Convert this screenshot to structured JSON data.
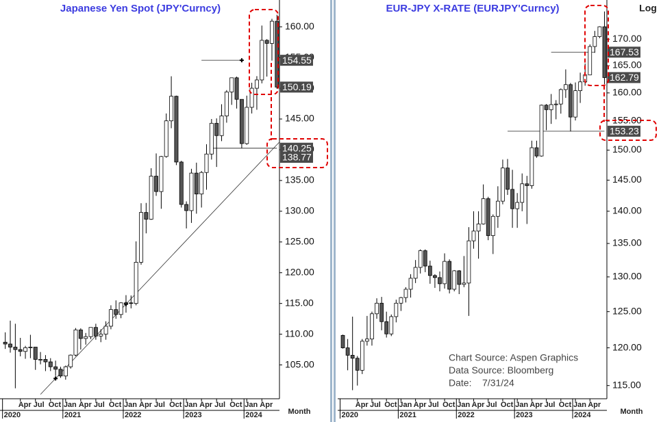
{
  "chart_data": [
    {
      "type": "candlestick",
      "title": "Japanese  Yen  Spot  (JPY'Curncy)",
      "x_axis_label": "Month",
      "log_scale": false,
      "categories": [
        "2020-01",
        "2020-02",
        "2020-03",
        "2020-04",
        "2020-05",
        "2020-06",
        "2020-07",
        "2020-08",
        "2020-09",
        "2020-10",
        "2020-11",
        "2020-12",
        "2021-01",
        "2021-02",
        "2021-03",
        "2021-04",
        "2021-05",
        "2021-06",
        "2021-07",
        "2021-08",
        "2021-09",
        "2021-10",
        "2021-11",
        "2021-12",
        "2022-01",
        "2022-02",
        "2022-03",
        "2022-04",
        "2022-05",
        "2022-06",
        "2022-07",
        "2022-08",
        "2022-09",
        "2022-10",
        "2022-11",
        "2022-12",
        "2023-01",
        "2023-02",
        "2023-03",
        "2023-04",
        "2023-05",
        "2023-06",
        "2023-07",
        "2023-08",
        "2023-09",
        "2023-10",
        "2023-11",
        "2023-12",
        "2024-01",
        "2024-02",
        "2024-03",
        "2024-04",
        "2024-05",
        "2024-06",
        "2024-07"
      ],
      "open": [
        108.7,
        108.4,
        107.9,
        107.5,
        107.2,
        107.8,
        107.9,
        105.9,
        105.9,
        105.5,
        104.7,
        104.3,
        103.2,
        104.7,
        106.6,
        110.7,
        109.3,
        109.6,
        111.1,
        109.7,
        110.0,
        111.3,
        114.0,
        113.2,
        115.1,
        115.1,
        115.0,
        121.7,
        129.8,
        128.7,
        135.7,
        133.2,
        138.9,
        144.7,
        148.7,
        138.0,
        131.1,
        130.1,
        136.2,
        132.8,
        136.3,
        139.3,
        144.3,
        142.3,
        145.5,
        149.4,
        151.7,
        148.2,
        141.0,
        146.9,
        150.0,
        151.35,
        157.8,
        157.3,
        160.9
      ],
      "high": [
        110.3,
        112.2,
        111.7,
        109.4,
        108.1,
        109.9,
        107.8,
        107.1,
        106.6,
        106.1,
        105.7,
        104.7,
        104.9,
        106.7,
        111.0,
        110.96,
        110.2,
        111.1,
        111.7,
        110.8,
        112.1,
        114.7,
        115.5,
        115.2,
        116.35,
        116.3,
        125.1,
        131.3,
        131.35,
        137.0,
        139.4,
        139.0,
        145.9,
        151.95,
        148.8,
        138.2,
        131.6,
        136.9,
        137.9,
        136.55,
        140.9,
        145.0,
        145.1,
        147.4,
        149.7,
        151.7,
        151.9,
        148.2,
        148.8,
        150.9,
        151.97,
        160.2,
        157.99,
        161.3,
        161.95
      ],
      "low": [
        107.6,
        107.0,
        101.2,
        106.4,
        106.0,
        106.1,
        104.2,
        105.1,
        104.0,
        104.0,
        103.2,
        102.9,
        102.6,
        104.4,
        106.4,
        107.5,
        108.3,
        109.2,
        109.1,
        108.7,
        109.1,
        110.8,
        112.5,
        112.6,
        113.5,
        114.2,
        114.7,
        121.3,
        126.4,
        128.6,
        132.5,
        130.4,
        138.7,
        143.5,
        137.5,
        130.6,
        127.2,
        128.1,
        129.6,
        130.6,
        133.5,
        138.4,
        137.2,
        141.4,
        144.4,
        147.3,
        146.7,
        140.25,
        140.8,
        145.9,
        146.5,
        150.8,
        151.9,
        154.5,
        149.9
      ],
      "close": [
        108.4,
        107.9,
        107.5,
        107.2,
        107.8,
        107.9,
        105.9,
        105.9,
        105.5,
        104.7,
        104.3,
        103.2,
        104.7,
        106.6,
        110.7,
        109.3,
        109.6,
        111.1,
        109.7,
        110.0,
        111.3,
        114.0,
        113.2,
        115.1,
        115.1,
        115.0,
        121.7,
        129.8,
        128.7,
        135.7,
        133.2,
        138.9,
        144.7,
        148.7,
        138.0,
        131.1,
        130.1,
        136.2,
        132.8,
        136.3,
        139.3,
        144.3,
        142.3,
        145.5,
        149.4,
        151.7,
        148.2,
        141.0,
        146.9,
        150.0,
        151.35,
        157.8,
        157.3,
        160.9,
        150.19
      ],
      "up_color": "#ffffff",
      "down_color": "#555555",
      "ylim": [
        99.5,
        163.8
      ],
      "yticks": [
        {
          "value": 105,
          "label": "105.00"
        },
        {
          "value": 110,
          "label": "110.00"
        },
        {
          "value": 115,
          "label": "115.00"
        },
        {
          "value": 120,
          "label": "120.00"
        },
        {
          "value": 125,
          "label": "125.00"
        },
        {
          "value": 130,
          "label": "130.00"
        },
        {
          "value": 135,
          "label": "135.00"
        },
        {
          "value": 140,
          "label": "140.00"
        },
        {
          "value": 145,
          "label": "145.00"
        },
        {
          "value": 150,
          "label": "150.00"
        },
        {
          "value": 155,
          "label": "155.00"
        },
        {
          "value": 160,
          "label": "160.00"
        }
      ],
      "xticks": [
        {
          "value": "2020-04",
          "label": "Apr"
        },
        {
          "value": "2020-07",
          "label": "Jul"
        },
        {
          "value": "2020-10",
          "label": "Oct"
        },
        {
          "value": "2021-01",
          "label": "Jan"
        },
        {
          "value": "2021-04",
          "label": "Apr"
        },
        {
          "value": "2021-07",
          "label": "Jul"
        },
        {
          "value": "2021-10",
          "label": "Oct"
        },
        {
          "value": "2022-01",
          "label": "Jan"
        },
        {
          "value": "2022-04",
          "label": "Apr"
        },
        {
          "value": "2022-07",
          "label": "Jul"
        },
        {
          "value": "2022-10",
          "label": "Oct"
        },
        {
          "value": "2023-01",
          "label": "Jan"
        },
        {
          "value": "2023-04",
          "label": "Apr"
        },
        {
          "value": "2023-07",
          "label": "Jul"
        },
        {
          "value": "2023-10",
          "label": "Oct"
        },
        {
          "value": "2024-01",
          "label": "Jan"
        },
        {
          "value": "2024-04",
          "label": "Apr"
        }
      ],
      "year_ticks": [
        {
          "value": "2020-01",
          "label": "2020"
        },
        {
          "value": "2021-01",
          "label": "2021"
        },
        {
          "value": "2022-01",
          "label": "2022"
        },
        {
          "value": "2023-01",
          "label": "2023"
        },
        {
          "value": "2024-01",
          "label": "2024"
        }
      ],
      "price_labels": [
        154.55,
        150.19,
        140.25,
        138.77
      ],
      "level_lines": [
        {
          "value": 154.55,
          "start": "2023-04",
          "end": "2023-12"
        },
        {
          "value": 140.25,
          "start": "2023-06",
          "end": "2024-07"
        }
      ],
      "trendline": [
        {
          "x": "2020-11",
          "y": 102.8
        },
        {
          "x": "2022-01",
          "y": 114.9
        }
      ]
    },
    {
      "type": "candlestick",
      "title": "EUR-JPY  X-RATE  (EURJPY'Curncy)",
      "x_axis_label": "Month",
      "log_scale": true,
      "scale_label": "Log",
      "categories": [
        "2020-01",
        "2020-02",
        "2020-03",
        "2020-04",
        "2020-05",
        "2020-06",
        "2020-07",
        "2020-08",
        "2020-09",
        "2020-10",
        "2020-11",
        "2020-12",
        "2021-01",
        "2021-02",
        "2021-03",
        "2021-04",
        "2021-05",
        "2021-06",
        "2021-07",
        "2021-08",
        "2021-09",
        "2021-10",
        "2021-11",
        "2021-12",
        "2022-01",
        "2022-02",
        "2022-03",
        "2022-04",
        "2022-05",
        "2022-06",
        "2022-07",
        "2022-08",
        "2022-09",
        "2022-10",
        "2022-11",
        "2022-12",
        "2023-01",
        "2023-02",
        "2023-03",
        "2023-04",
        "2023-05",
        "2023-06",
        "2023-07",
        "2023-08",
        "2023-09",
        "2023-10",
        "2023-11",
        "2023-12",
        "2024-01",
        "2024-02",
        "2024-03",
        "2024-04",
        "2024-05",
        "2024-06",
        "2024-07"
      ],
      "open": [
        121.7,
        120.0,
        119.0,
        118.6,
        117.0,
        120.9,
        121.2,
        124.7,
        126.2,
        123.6,
        121.9,
        124.3,
        126.2,
        127.0,
        128.2,
        129.8,
        131.4,
        133.9,
        131.6,
        130.2,
        129.9,
        129.0,
        132.3,
        128.2,
        130.9,
        128.9,
        129.1,
        135.4,
        136.9,
        138.0,
        142.0,
        136.2,
        139.2,
        141.6,
        147.0,
        143.5,
        140.4,
        141.4,
        144.4,
        144.1,
        150.4,
        149.0,
        157.8,
        157.0,
        157.9,
        158.0,
        160.6,
        161.5,
        155.7,
        160.4,
        162.0,
        163.3,
        168.6,
        170.5,
        172.4
      ],
      "high": [
        121.8,
        121.2,
        124.3,
        118.9,
        121.2,
        124.4,
        125.0,
        126.9,
        127.1,
        125.0,
        124.6,
        126.7,
        127.1,
        128.5,
        130.4,
        132.5,
        134.1,
        134.1,
        132.4,
        130.4,
        130.8,
        133.5,
        132.6,
        131.0,
        131.0,
        133.1,
        137.5,
        140.0,
        140.0,
        144.3,
        142.3,
        139.5,
        144.0,
        148.4,
        148.5,
        146.7,
        142.9,
        146.1,
        145.7,
        151.6,
        151.6,
        157.9,
        158.0,
        159.8,
        158.7,
        160.8,
        164.3,
        161.8,
        161.9,
        163.7,
        165.4,
        169.0,
        171.6,
        172.5,
        175.4
      ],
      "low": [
        119.9,
        117.0,
        114.4,
        115.0,
        116.5,
        120.3,
        120.3,
        124.0,
        122.4,
        121.4,
        121.6,
        123.5,
        125.1,
        126.3,
        127.0,
        129.1,
        130.5,
        130.7,
        129.0,
        128.4,
        127.9,
        128.3,
        127.6,
        127.9,
        127.5,
        128.5,
        124.4,
        134.2,
        132.7,
        137.9,
        135.5,
        133.4,
        137.4,
        141.1,
        142.6,
        137.4,
        137.4,
        140.0,
        138.0,
        143.6,
        148.7,
        148.9,
        153.4,
        154.5,
        155.3,
        156.3,
        159.1,
        153.2,
        155.1,
        158.2,
        161.3,
        163.7,
        167.4,
        170.2,
        161.6
      ],
      "close": [
        120.0,
        119.0,
        118.6,
        117.0,
        120.9,
        121.2,
        124.7,
        126.2,
        123.6,
        121.9,
        124.3,
        126.2,
        127.0,
        128.2,
        129.8,
        131.4,
        133.9,
        131.6,
        130.2,
        129.9,
        129.0,
        132.3,
        128.2,
        130.9,
        128.9,
        129.1,
        135.4,
        136.9,
        138.0,
        142.0,
        136.2,
        139.2,
        141.6,
        147.0,
        143.5,
        140.4,
        141.4,
        144.4,
        144.1,
        150.4,
        149.0,
        157.8,
        157.0,
        157.9,
        158.0,
        160.6,
        161.5,
        155.7,
        160.4,
        162.0,
        163.3,
        168.6,
        170.5,
        172.4,
        162.79
      ],
      "up_color": "#ffffff",
      "down_color": "#555555",
      "ylim": [
        113.3,
        177.0
      ],
      "yticks": [
        {
          "value": 115,
          "label": "115.00"
        },
        {
          "value": 120,
          "label": "120.00"
        },
        {
          "value": 125,
          "label": "125.00"
        },
        {
          "value": 130,
          "label": "130.00"
        },
        {
          "value": 135,
          "label": "135.00"
        },
        {
          "value": 140,
          "label": "140.00"
        },
        {
          "value": 145,
          "label": "145.00"
        },
        {
          "value": 150,
          "label": "150.00"
        },
        {
          "value": 155,
          "label": "155.00"
        },
        {
          "value": 160,
          "label": "160.00"
        },
        {
          "value": 165,
          "label": "165.00"
        },
        {
          "value": 170,
          "label": "170.00"
        }
      ],
      "xticks": [
        {
          "value": "2020-04",
          "label": "Apr"
        },
        {
          "value": "2020-07",
          "label": "Jul"
        },
        {
          "value": "2020-10",
          "label": "Oct"
        },
        {
          "value": "2021-01",
          "label": "Jan"
        },
        {
          "value": "2021-04",
          "label": "Apr"
        },
        {
          "value": "2021-07",
          "label": "Jul"
        },
        {
          "value": "2021-10",
          "label": "Oct"
        },
        {
          "value": "2022-01",
          "label": "Jan"
        },
        {
          "value": "2022-04",
          "label": "Apr"
        },
        {
          "value": "2022-07",
          "label": "Jul"
        },
        {
          "value": "2022-10",
          "label": "Oct"
        },
        {
          "value": "2023-01",
          "label": "Jan"
        },
        {
          "value": "2023-04",
          "label": "Apr"
        },
        {
          "value": "2023-07",
          "label": "Jul"
        },
        {
          "value": "2023-10",
          "label": "Oct"
        },
        {
          "value": "2024-01",
          "label": "Jan"
        },
        {
          "value": "2024-04",
          "label": "Apr"
        }
      ],
      "year_ticks": [
        {
          "value": "2020-01",
          "label": "2020"
        },
        {
          "value": "2021-01",
          "label": "2021"
        },
        {
          "value": "2022-01",
          "label": "2022"
        },
        {
          "value": "2023-01",
          "label": "2023"
        },
        {
          "value": "2024-01",
          "label": "2024"
        }
      ],
      "price_labels": [
        167.53,
        162.79,
        153.23
      ],
      "level_lines": [
        {
          "value": 167.53,
          "start": "2023-08",
          "end": "2024-05"
        },
        {
          "value": 153.23,
          "start": "2022-11",
          "end": "2024-07"
        }
      ],
      "annotations": [
        "Chart Source: Aspen Graphics",
        "Data Source: Bloomberg",
        "Date:    7/31/24"
      ]
    }
  ]
}
